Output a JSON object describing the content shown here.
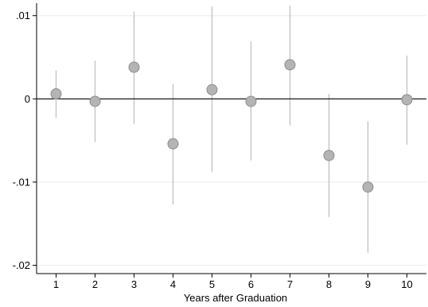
{
  "chart_data": {
    "type": "scatter",
    "title": "",
    "xlabel": "Years after Graduation",
    "ylabel": "",
    "xlim": [
      0.5,
      10.5
    ],
    "ylim": [
      -0.021,
      0.0115
    ],
    "grid": true,
    "reference_line_y": 0,
    "x_ticks": [
      1,
      2,
      3,
      4,
      5,
      6,
      7,
      8,
      9,
      10
    ],
    "y_ticks": [
      {
        "value": 0.01,
        "label": ".01"
      },
      {
        "value": 0,
        "label": "0"
      },
      {
        "value": -0.01,
        "label": "-.01"
      },
      {
        "value": -0.02,
        "label": "-.02"
      }
    ],
    "points": [
      {
        "x": 1,
        "y": 0.0006,
        "lo": -0.0023,
        "hi": 0.0034
      },
      {
        "x": 2,
        "y": -0.0003,
        "lo": -0.0052,
        "hi": 0.0046
      },
      {
        "x": 3,
        "y": 0.0038,
        "lo": -0.003,
        "hi": 0.0105
      },
      {
        "x": 4,
        "y": -0.0054,
        "lo": -0.0127,
        "hi": 0.0018
      },
      {
        "x": 5,
        "y": 0.0011,
        "lo": -0.0088,
        "hi": 0.0111
      },
      {
        "x": 6,
        "y": -0.0003,
        "lo": -0.0074,
        "hi": 0.0069
      },
      {
        "x": 7,
        "y": 0.0041,
        "lo": -0.0032,
        "hi": 0.0112
      },
      {
        "x": 8,
        "y": -0.0068,
        "lo": -0.0142,
        "hi": 0.0006
      },
      {
        "x": 9,
        "y": -0.0106,
        "lo": -0.0185,
        "hi": -0.0027
      },
      {
        "x": 10,
        "y": -0.0001,
        "lo": -0.0055,
        "hi": 0.0052
      }
    ],
    "colors": {
      "marker_fill": "#b4b4b4",
      "marker_stroke": "#8c8c8c",
      "ci_line": "#c4c4c4",
      "grid": "#ececec",
      "axis": "#000000"
    }
  }
}
